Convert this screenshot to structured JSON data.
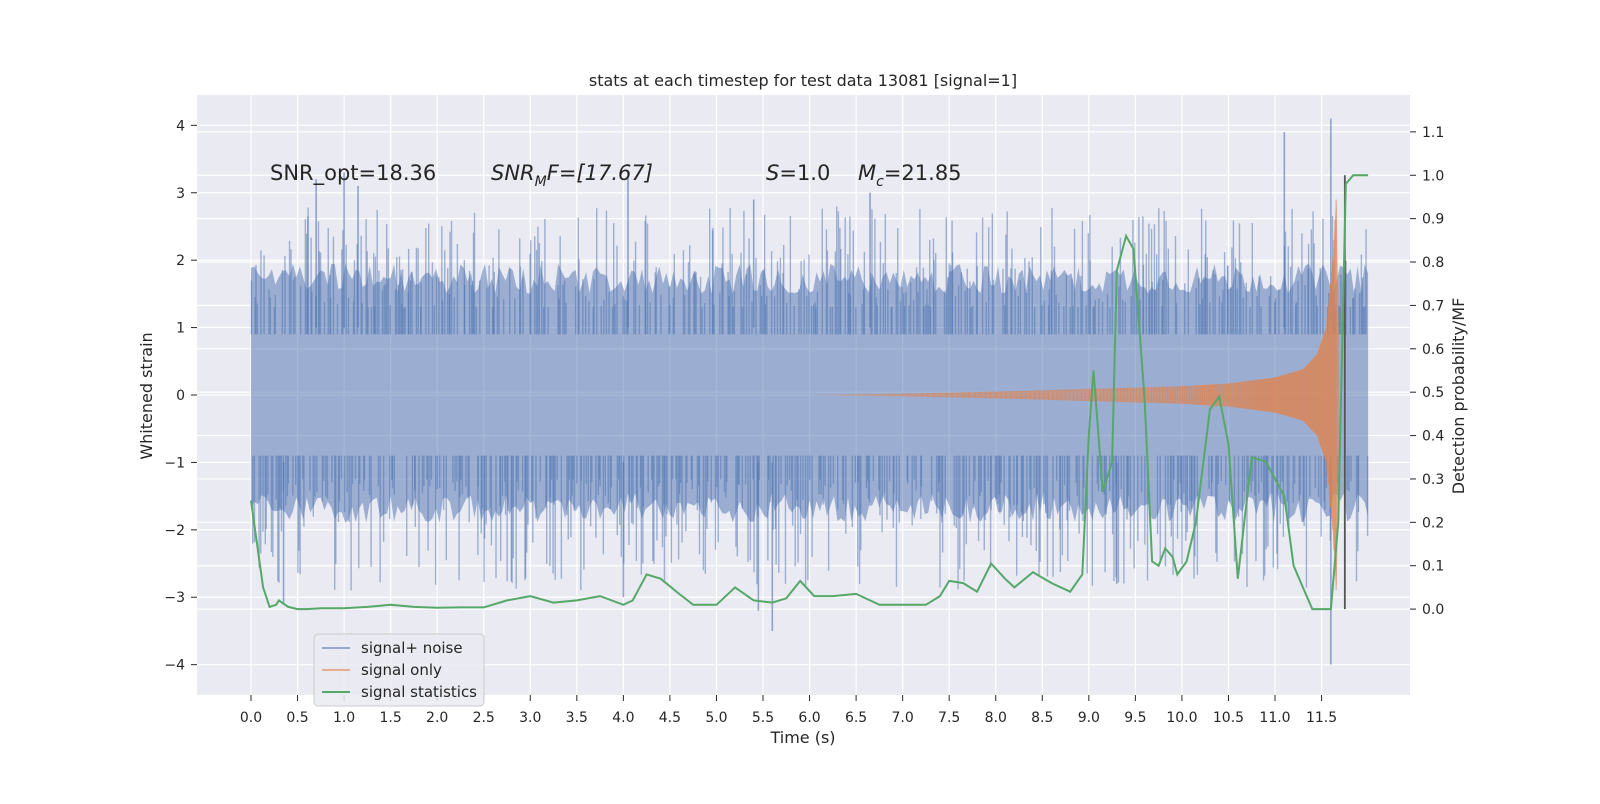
{
  "chart_data": {
    "type": "line",
    "title": "stats at each timestep for test data 13081 [signal=1]",
    "xlabel": "Time (s)",
    "ylabel": "Whitened strain",
    "ylabel_right": "Detection probability/MF",
    "xlim": [
      -0.58,
      12.45
    ],
    "ylim": [
      -4.45,
      4.45
    ],
    "ylim_right": [
      -0.198,
      1.185
    ],
    "x_ticks": [
      0.0,
      0.5,
      1.0,
      1.5,
      2.0,
      2.5,
      3.0,
      3.5,
      4.0,
      4.5,
      5.0,
      5.5,
      6.0,
      6.5,
      7.0,
      7.5,
      8.0,
      8.5,
      9.0,
      9.5,
      10.0,
      10.5,
      11.0,
      11.5
    ],
    "x_tick_labels": [
      "0.0",
      "0.5",
      "1.0",
      "1.5",
      "2.0",
      "2.5",
      "3.0",
      "3.5",
      "4.0",
      "4.5",
      "5.0",
      "5.5",
      "6.0",
      "6.5",
      "7.0",
      "7.5",
      "8.0",
      "8.5",
      "9.0",
      "9.5",
      "10.0",
      "10.5",
      "11.0",
      "11.5"
    ],
    "y_ticks": [
      -4,
      -3,
      -2,
      -1,
      0,
      1,
      2,
      3,
      4
    ],
    "y_tick_labels": [
      "−4",
      "−3",
      "−2",
      "−1",
      "0",
      "1",
      "2",
      "3",
      "4"
    ],
    "y2_ticks": [
      0.0,
      0.1,
      0.2,
      0.3,
      0.4,
      0.5,
      0.6,
      0.7,
      0.8,
      0.9,
      1.0,
      1.1
    ],
    "y2_tick_labels": [
      "0.0",
      "0.1",
      "0.2",
      "0.3",
      "0.4",
      "0.5",
      "0.6",
      "0.7",
      "0.8",
      "0.9",
      "1.0",
      "1.1"
    ],
    "grid": true,
    "legend_position": "lower-left",
    "colors": {
      "noise": "#4c72b0",
      "signal": "#dd8452",
      "stats": "#55a868",
      "background": "#eaeaf2",
      "grid": "#ffffff",
      "marker": "#555555"
    },
    "noise_envelope": {
      "t_start": 0.0,
      "t_end": 12.0,
      "dense_band": [
        -1.25,
        1.3
      ],
      "typical_peak": 2.2,
      "typical_trough": -2.3,
      "spikes": [
        [
          0.7,
          3.2
        ],
        [
          1.0,
          3.3
        ],
        [
          1.15,
          3.1
        ],
        [
          4.05,
          3.3
        ],
        [
          5.4,
          2.9
        ],
        [
          6.65,
          3.0
        ],
        [
          11.1,
          3.9
        ],
        [
          11.6,
          4.1
        ],
        [
          4.0,
          -3.0
        ],
        [
          5.45,
          -3.2
        ],
        [
          5.6,
          -3.5
        ],
        [
          9.3,
          -2.8
        ],
        [
          11.6,
          -4.0
        ],
        [
          0.35,
          -3.1
        ]
      ]
    },
    "series": [
      {
        "name": "signal+ noise",
        "color": "#4c72b0",
        "description_axis": "left"
      },
      {
        "name": "signal only",
        "color": "#dd8452",
        "axis": "left",
        "t": [
          0.0,
          6.0,
          7.0,
          8.0,
          9.0,
          10.0,
          10.5,
          11.0,
          11.3,
          11.45,
          11.55,
          11.62,
          11.66,
          11.7
        ],
        "amplitude": [
          0.0,
          0.0,
          0.02,
          0.05,
          0.09,
          0.13,
          0.17,
          0.26,
          0.38,
          0.6,
          1.0,
          2.0,
          3.0,
          0.0
        ]
      },
      {
        "name": "signal statistics",
        "color": "#55a868",
        "axis": "right",
        "x": [
          0.0,
          0.13,
          0.2,
          0.27,
          0.3,
          0.4,
          0.5,
          0.6,
          0.75,
          1.0,
          1.25,
          1.5,
          1.75,
          2.0,
          2.25,
          2.5,
          2.75,
          3.0,
          3.25,
          3.5,
          3.75,
          4.0,
          4.1,
          4.25,
          4.4,
          4.6,
          4.75,
          5.0,
          5.2,
          5.4,
          5.6,
          5.75,
          5.9,
          6.05,
          6.25,
          6.5,
          6.75,
          7.0,
          7.25,
          7.4,
          7.5,
          7.65,
          7.8,
          7.95,
          8.1,
          8.2,
          8.4,
          8.6,
          8.8,
          8.93,
          9.0,
          9.05,
          9.15,
          9.25,
          9.3,
          9.4,
          9.48,
          9.6,
          9.68,
          9.75,
          9.82,
          9.9,
          9.95,
          10.05,
          10.15,
          10.3,
          10.4,
          10.5,
          10.6,
          10.75,
          10.9,
          11.0,
          11.1,
          11.2,
          11.3,
          11.4,
          11.5,
          11.6,
          11.68,
          11.76,
          11.84,
          11.92,
          12.0
        ],
        "values": [
          0.25,
          0.05,
          0.005,
          0.01,
          0.02,
          0.005,
          0.0,
          0.0,
          0.002,
          0.002,
          0.005,
          0.01,
          0.005,
          0.003,
          0.004,
          0.004,
          0.02,
          0.03,
          0.015,
          0.02,
          0.03,
          0.01,
          0.02,
          0.08,
          0.07,
          0.035,
          0.01,
          0.01,
          0.05,
          0.02,
          0.015,
          0.025,
          0.065,
          0.03,
          0.03,
          0.035,
          0.01,
          0.01,
          0.01,
          0.03,
          0.065,
          0.06,
          0.04,
          0.105,
          0.07,
          0.05,
          0.085,
          0.06,
          0.04,
          0.08,
          0.4,
          0.55,
          0.27,
          0.34,
          0.78,
          0.86,
          0.83,
          0.48,
          0.11,
          0.1,
          0.14,
          0.12,
          0.08,
          0.11,
          0.2,
          0.46,
          0.49,
          0.38,
          0.07,
          0.35,
          0.34,
          0.3,
          0.26,
          0.1,
          0.05,
          0.0,
          0.0,
          0.0,
          0.2,
          0.98,
          1.0,
          1.0,
          1.0
        ]
      }
    ],
    "vertical_marker_x": 11.75,
    "annotations": {
      "snr_opt": "SNR_opt=18.36",
      "snr_mf_symbol": "SNR",
      "snr_mf_sub": "M",
      "snr_mf_rest": "F=[17.67]",
      "s_symbol": "S",
      "s_rest": "=1.0",
      "mc_symbol": "M",
      "mc_sub": "c",
      "mc_rest": "=21.85"
    }
  }
}
